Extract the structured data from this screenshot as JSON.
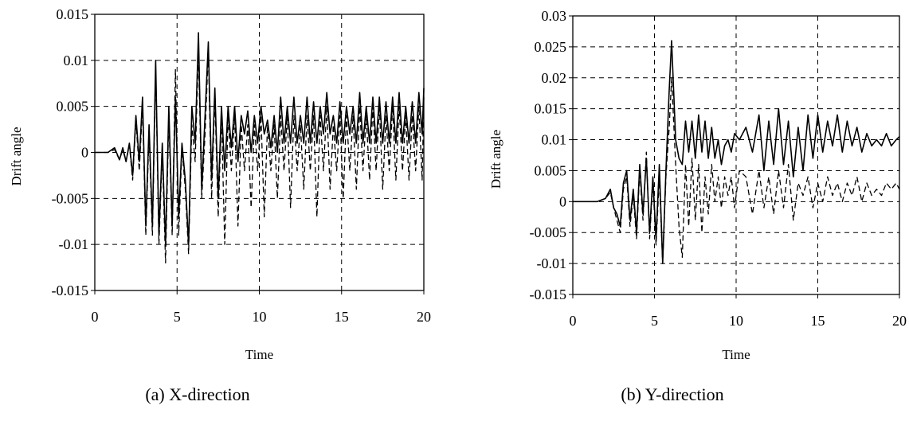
{
  "figure": {
    "captions": [
      "(a) X-direction",
      "(b) Y-direction"
    ]
  },
  "chart_data": [
    {
      "type": "line",
      "caption": "(a) X-direction",
      "xlabel": "Time",
      "ylabel": "Drift angle",
      "xlim": [
        0,
        20
      ],
      "ylim": [
        -0.015,
        0.015
      ],
      "xticks": [
        0,
        5,
        10,
        15,
        20
      ],
      "xtick_labels": [
        "0",
        "5",
        "10",
        "15",
        "20"
      ],
      "yticks": [
        -0.015,
        -0.01,
        -0.005,
        0,
        0.005,
        0.01,
        0.015
      ],
      "ytick_labels": [
        "-0.015",
        "-0.01",
        "-0.005",
        "0",
        "0.005",
        "0.01",
        "0.015"
      ],
      "grid": true,
      "series": [
        {
          "style": "solid",
          "color": "#000000",
          "x": [
            0,
            0.8,
            1.2,
            1.5,
            1.7,
            1.9,
            2.1,
            2.3,
            2.5,
            2.7,
            2.9,
            3.1,
            3.3,
            3.5,
            3.7,
            3.9,
            4.1,
            4.3,
            4.5,
            4.7,
            4.9,
            5.1,
            5.3,
            5.5,
            5.7,
            5.9,
            6.1,
            6.3,
            6.5,
            6.7,
            6.9,
            7.1,
            7.3,
            7.5,
            7.7,
            7.9,
            8.1,
            8.3,
            8.5,
            8.7,
            8.9,
            9.1,
            9.3,
            9.5,
            9.7,
            9.9,
            10.1,
            10.3,
            10.5,
            10.7,
            10.9,
            11.1,
            11.3,
            11.5,
            11.7,
            11.9,
            12.1,
            12.3,
            12.5,
            12.7,
            12.9,
            13.1,
            13.3,
            13.5,
            13.7,
            13.9,
            14.1,
            14.3,
            14.5,
            14.7,
            14.9,
            15.1,
            15.3,
            15.5,
            15.7,
            15.9,
            16.1,
            16.3,
            16.5,
            16.7,
            16.9,
            17.1,
            17.3,
            17.5,
            17.7,
            17.9,
            18.1,
            18.3,
            18.5,
            18.7,
            18.9,
            19.1,
            19.3,
            19.5,
            19.7,
            19.9,
            20
          ],
          "y": [
            0,
            0,
            0.0005,
            -0.0008,
            0.0005,
            -0.001,
            0.001,
            -0.0025,
            0.004,
            -0.001,
            0.006,
            -0.008,
            0.003,
            -0.008,
            0.01,
            -0.009,
            0.001,
            -0.01,
            0.005,
            -0.008,
            0.006,
            -0.007,
            0.001,
            -0.003,
            -0.01,
            0.005,
            0.001,
            0.013,
            -0.004,
            0.004,
            0.012,
            -0.003,
            0.007,
            -0.005,
            0.005,
            -0.002,
            0.005,
            0.0005,
            0.005,
            -0.001,
            0.004,
            0.002,
            0.0045,
            0,
            0.004,
            0.001,
            0.005,
            0.002,
            0.0035,
            0.0005,
            0.004,
            0,
            0.006,
            0.001,
            0.005,
            0.001,
            0.006,
            0.001,
            0.004,
            0.001,
            0.006,
            0.001,
            0.0055,
            0.001,
            0.005,
            0.002,
            0.0065,
            0.002,
            0.004,
            0.001,
            0.0055,
            0.001,
            0.005,
            0.002,
            0.005,
            0.001,
            0.0065,
            0.001,
            0.005,
            0.001,
            0.006,
            0.001,
            0.006,
            0.001,
            0.0055,
            0.001,
            0.006,
            0.001,
            0.0065,
            0.001,
            0.005,
            0.001,
            0.0055,
            0.001,
            0.0065,
            0.002,
            0.007
          ]
        },
        {
          "style": "dashed",
          "color": "#000000",
          "x": [
            0,
            0.8,
            1.2,
            1.5,
            1.7,
            1.9,
            2.1,
            2.3,
            2.5,
            2.7,
            2.9,
            3.1,
            3.3,
            3.5,
            3.7,
            3.9,
            4.1,
            4.3,
            4.5,
            4.7,
            4.9,
            5.1,
            5.3,
            5.5,
            5.7,
            5.9,
            6.1,
            6.3,
            6.5,
            6.7,
            6.9,
            7.1,
            7.3,
            7.5,
            7.7,
            7.9,
            8.1,
            8.3,
            8.5,
            8.7,
            8.9,
            9.1,
            9.3,
            9.5,
            9.7,
            9.9,
            10.1,
            10.3,
            10.5,
            10.7,
            10.9,
            11.1,
            11.3,
            11.5,
            11.7,
            11.9,
            12.1,
            12.3,
            12.5,
            12.7,
            12.9,
            13.1,
            13.3,
            13.5,
            13.7,
            13.9,
            14.1,
            14.3,
            14.5,
            14.7,
            14.9,
            15.1,
            15.3,
            15.5,
            15.7,
            15.9,
            16.1,
            16.3,
            16.5,
            16.7,
            16.9,
            17.1,
            17.3,
            17.5,
            17.7,
            17.9,
            18.1,
            18.3,
            18.5,
            18.7,
            18.9,
            19.1,
            19.3,
            19.5,
            19.7,
            19.9,
            20
          ],
          "y": [
            0,
            0,
            0.0003,
            -0.0008,
            0.0003,
            -0.001,
            0.0008,
            -0.003,
            0.0035,
            -0.002,
            0.005,
            -0.009,
            0.002,
            -0.009,
            0.009,
            -0.01,
            0,
            -0.012,
            0.004,
            -0.009,
            0.009,
            -0.009,
            0.0005,
            -0.004,
            -0.011,
            0.003,
            -0.001,
            0.011,
            -0.005,
            0.002,
            0.011,
            -0.005,
            0.006,
            -0.007,
            0.004,
            -0.01,
            0.004,
            -0.002,
            0.004,
            -0.008,
            0.003,
            -0.002,
            0.003,
            -0.006,
            0.003,
            -0.002,
            0.004,
            -0.007,
            0.003,
            -0.002,
            0.003,
            -0.005,
            0.004,
            -0.002,
            0.004,
            -0.006,
            0.004,
            -0.002,
            0.003,
            -0.004,
            0.004,
            -0.002,
            0.004,
            -0.007,
            0.004,
            -0.002,
            0.005,
            -0.004,
            0.003,
            -0.002,
            0.004,
            -0.005,
            0.004,
            -0.002,
            0.004,
            -0.004,
            0.005,
            -0.002,
            0.004,
            -0.003,
            0.005,
            -0.002,
            0.005,
            -0.004,
            0.004,
            -0.002,
            0.005,
            -0.003,
            0.005,
            -0.002,
            0.004,
            -0.003,
            0.004,
            -0.002,
            0.005,
            -0.003,
            0.006
          ]
        }
      ]
    },
    {
      "type": "line",
      "caption": "(b) Y-direction",
      "xlabel": "Time",
      "ylabel": "Drift angle",
      "xlim": [
        0,
        20
      ],
      "ylim": [
        -0.015,
        0.03
      ],
      "xticks": [
        0,
        5,
        10,
        15,
        20
      ],
      "xtick_labels": [
        "0",
        "5",
        "10",
        "15",
        "20"
      ],
      "yticks": [
        -0.015,
        -0.01,
        -0.005,
        0,
        0.005,
        0.01,
        0.015,
        0.02,
        0.025,
        0.03
      ],
      "ytick_labels": [
        "-0.015",
        "-0.01",
        "-0.005",
        "0",
        "0.005",
        "0.01",
        "0.015",
        "0.02",
        "0.025",
        "0.03"
      ],
      "grid": true,
      "series": [
        {
          "style": "solid",
          "color": "#000000",
          "x": [
            0,
            1.5,
            2.0,
            2.3,
            2.5,
            2.7,
            2.9,
            3.1,
            3.3,
            3.5,
            3.7,
            3.9,
            4.1,
            4.3,
            4.5,
            4.7,
            4.9,
            5.1,
            5.3,
            5.5,
            5.7,
            5.9,
            6.05,
            6.3,
            6.5,
            6.7,
            6.9,
            7.1,
            7.3,
            7.5,
            7.7,
            7.9,
            8.1,
            8.3,
            8.5,
            8.7,
            8.9,
            9.1,
            9.3,
            9.5,
            9.7,
            9.9,
            10.2,
            10.6,
            11.0,
            11.4,
            11.7,
            12.0,
            12.3,
            12.6,
            12.9,
            13.2,
            13.5,
            13.8,
            14.1,
            14.4,
            14.7,
            15.0,
            15.3,
            15.6,
            15.9,
            16.2,
            16.5,
            16.8,
            17.1,
            17.4,
            17.7,
            18.0,
            18.3,
            18.6,
            18.9,
            19.2,
            19.5,
            19.8,
            20
          ],
          "y": [
            0,
            0,
            0.0005,
            0.002,
            -0.001,
            -0.002,
            -0.004,
            0.003,
            0.005,
            -0.003,
            0.002,
            -0.005,
            0.006,
            -0.002,
            0.007,
            -0.005,
            0.004,
            -0.006,
            0.006,
            -0.01,
            0.005,
            0.018,
            0.026,
            0.01,
            0.007,
            0.006,
            0.013,
            0.008,
            0.013,
            0.007,
            0.014,
            0.008,
            0.013,
            0.007,
            0.012,
            0.007,
            0.01,
            0.006,
            0.009,
            0.01,
            0.008,
            0.011,
            0.01,
            0.012,
            0.008,
            0.014,
            0.005,
            0.013,
            0.006,
            0.015,
            0.006,
            0.013,
            0.004,
            0.012,
            0.005,
            0.014,
            0.007,
            0.014,
            0.008,
            0.013,
            0.009,
            0.014,
            0.008,
            0.013,
            0.009,
            0.012,
            0.008,
            0.011,
            0.009,
            0.01,
            0.009,
            0.011,
            0.009,
            0.01,
            0.0105
          ]
        },
        {
          "style": "dashed",
          "color": "#000000",
          "x": [
            0,
            1.5,
            2.0,
            2.3,
            2.5,
            2.7,
            2.9,
            3.1,
            3.3,
            3.5,
            3.7,
            3.9,
            4.1,
            4.3,
            4.5,
            4.7,
            4.9,
            5.1,
            5.3,
            5.5,
            5.7,
            5.9,
            6.05,
            6.3,
            6.5,
            6.7,
            6.9,
            7.1,
            7.3,
            7.5,
            7.7,
            7.9,
            8.1,
            8.3,
            8.5,
            8.7,
            8.9,
            9.1,
            9.3,
            9.5,
            9.7,
            9.9,
            10.2,
            10.6,
            11.0,
            11.4,
            11.7,
            12.0,
            12.3,
            12.6,
            12.9,
            13.2,
            13.5,
            13.8,
            14.1,
            14.4,
            14.7,
            15.0,
            15.3,
            15.6,
            15.9,
            16.2,
            16.5,
            16.8,
            17.1,
            17.4,
            17.7,
            18.0,
            18.3,
            18.6,
            18.9,
            19.2,
            19.5,
            19.8,
            20
          ],
          "y": [
            0,
            0,
            0.0005,
            0.0015,
            -0.001,
            -0.003,
            -0.005,
            0.002,
            0.004,
            -0.004,
            0.001,
            -0.006,
            0.005,
            -0.003,
            0.008,
            -0.006,
            0.003,
            -0.007,
            0.004,
            -0.01,
            0.004,
            0.012,
            0.02,
            0.006,
            -0.004,
            -0.009,
            0.006,
            -0.004,
            0.007,
            -0.003,
            0.006,
            -0.005,
            0.004,
            -0.002,
            0.006,
            0,
            0.004,
            -0.001,
            0.004,
            0.001,
            0.004,
            -0.001,
            0.005,
            0.004,
            -0.002,
            0.005,
            -0.001,
            0.004,
            -0.002,
            0.005,
            -0.001,
            0.006,
            -0.003,
            0.003,
            0.001,
            0.004,
            -0.001,
            0.003,
            0,
            0.004,
            0.001,
            0.003,
            0,
            0.003,
            0.001,
            0.004,
            0,
            0.003,
            0.001,
            0.002,
            0.001,
            0.003,
            0.002,
            0.003,
            0.002
          ]
        }
      ]
    }
  ]
}
